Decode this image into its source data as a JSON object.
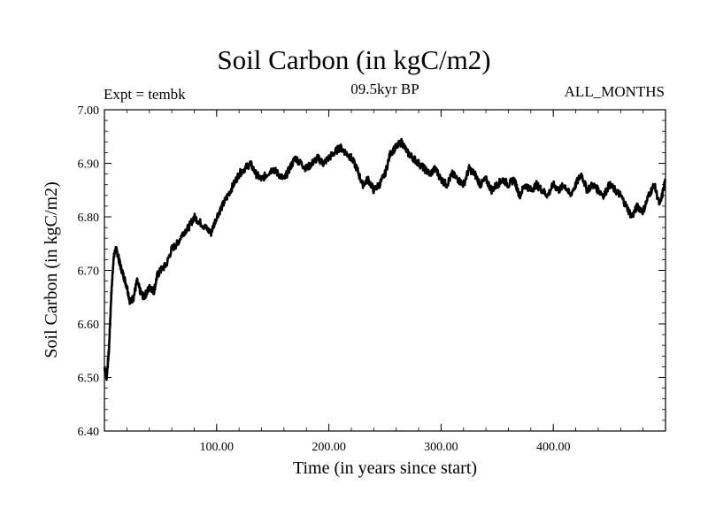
{
  "chart_data": {
    "type": "line",
    "title": "Soil Carbon (in kgC/m2)",
    "subtitle": "09.5kyr BP",
    "annotation_left": "Expt = tembk",
    "annotation_right": "ALL_MONTHS",
    "xlabel": "Time (in years since start)",
    "ylabel": "Soil Carbon (in kgC/m2)",
    "xlim": [
      0,
      500
    ],
    "ylim": [
      6.4,
      7.0
    ],
    "x_ticks": [
      100,
      200,
      300,
      400
    ],
    "x_tick_labels": [
      "100.00",
      "200.00",
      "300.00",
      "400.00"
    ],
    "y_ticks": [
      6.4,
      6.5,
      6.6,
      6.7,
      6.8,
      6.9,
      7.0
    ],
    "y_tick_labels": [
      "6.40",
      "6.50",
      "6.60",
      "6.70",
      "6.80",
      "6.90",
      "7.00"
    ],
    "series": [
      {
        "name": "Soil Carbon",
        "color": "#000000",
        "x": [
          0,
          2,
          4,
          6,
          8,
          10,
          12,
          14,
          17,
          20,
          23,
          26,
          29,
          32,
          35,
          38,
          41,
          44,
          47,
          50,
          55,
          60,
          65,
          70,
          75,
          80,
          85,
          90,
          95,
          100,
          105,
          110,
          115,
          120,
          125,
          130,
          135,
          140,
          145,
          150,
          155,
          160,
          165,
          170,
          175,
          180,
          185,
          190,
          195,
          200,
          205,
          210,
          215,
          220,
          225,
          230,
          235,
          240,
          245,
          250,
          255,
          260,
          265,
          270,
          275,
          280,
          285,
          290,
          295,
          300,
          305,
          310,
          315,
          320,
          325,
          330,
          335,
          340,
          345,
          350,
          355,
          360,
          365,
          370,
          375,
          380,
          385,
          390,
          395,
          400,
          405,
          410,
          415,
          420,
          425,
          430,
          435,
          440,
          445,
          450,
          455,
          460,
          465,
          470,
          475,
          480,
          485,
          490,
          495,
          500
        ],
        "values": [
          6.52,
          6.5,
          6.55,
          6.65,
          6.72,
          6.74,
          6.73,
          6.71,
          6.69,
          6.67,
          6.64,
          6.65,
          6.68,
          6.66,
          6.65,
          6.66,
          6.67,
          6.66,
          6.69,
          6.7,
          6.71,
          6.74,
          6.75,
          6.77,
          6.78,
          6.8,
          6.79,
          6.78,
          6.77,
          6.8,
          6.82,
          6.84,
          6.86,
          6.88,
          6.89,
          6.9,
          6.88,
          6.87,
          6.88,
          6.89,
          6.88,
          6.87,
          6.89,
          6.91,
          6.9,
          6.89,
          6.9,
          6.91,
          6.9,
          6.91,
          6.92,
          6.93,
          6.92,
          6.91,
          6.89,
          6.86,
          6.87,
          6.85,
          6.86,
          6.88,
          6.92,
          6.93,
          6.94,
          6.92,
          6.91,
          6.9,
          6.89,
          6.88,
          6.89,
          6.87,
          6.86,
          6.88,
          6.87,
          6.86,
          6.89,
          6.88,
          6.86,
          6.87,
          6.85,
          6.86,
          6.87,
          6.86,
          6.87,
          6.84,
          6.86,
          6.85,
          6.86,
          6.85,
          6.84,
          6.86,
          6.85,
          6.86,
          6.84,
          6.86,
          6.88,
          6.85,
          6.86,
          6.85,
          6.84,
          6.86,
          6.85,
          6.84,
          6.82,
          6.8,
          6.82,
          6.81,
          6.84,
          6.86,
          6.82,
          6.87
        ]
      }
    ]
  }
}
